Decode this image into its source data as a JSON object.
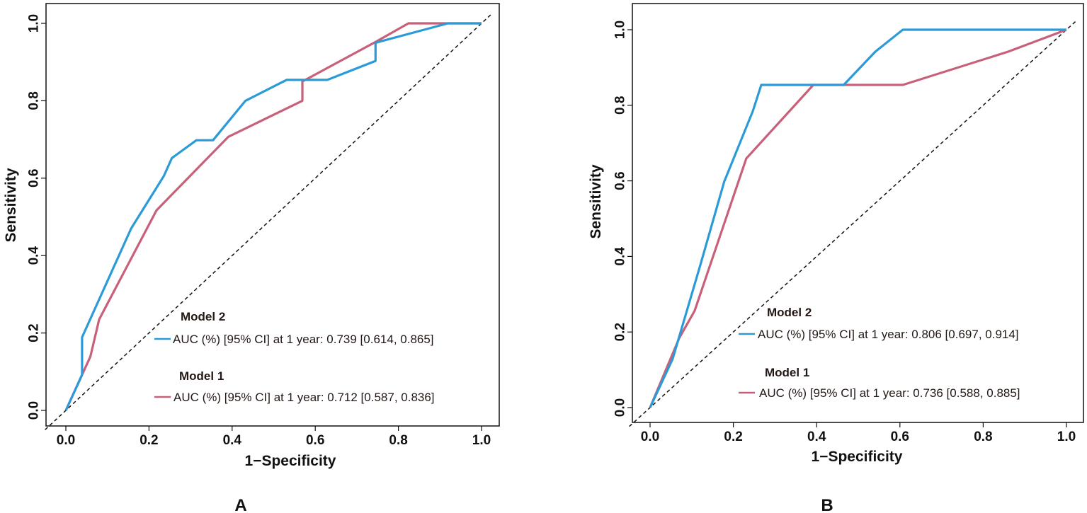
{
  "chart_data": [
    {
      "type": "line",
      "panel_label": "A",
      "xlabel": "1−Specificity",
      "ylabel": "Sensitivity",
      "xlim": [
        0,
        1
      ],
      "ylim": [
        0,
        1
      ],
      "xticks": [
        "0.0",
        "0.2",
        "0.4",
        "0.6",
        "0.8",
        "1.0"
      ],
      "yticks": [
        "0.0",
        "0.2",
        "0.4",
        "0.6",
        "0.8",
        "1.0"
      ],
      "reference_line": "diagonal dashed",
      "series": [
        {
          "name": "Model 2",
          "color": "#2b9bd8",
          "legend_text": "AUC (%) [95% CI] at 1 year: 0.739 [0.614, 0.865]",
          "x": [
            0,
            0.039,
            0.039,
            0.157,
            0.236,
            0.255,
            0.314,
            0.354,
            0.432,
            0.531,
            0.629,
            0.745,
            0.745,
            0.919,
            1
          ],
          "y": [
            0,
            0.092,
            0.189,
            0.47,
            0.606,
            0.652,
            0.698,
            0.698,
            0.8,
            0.854,
            0.854,
            0.903,
            0.95,
            1,
            1
          ]
        },
        {
          "name": "Model 1",
          "color": "#c8607a",
          "legend_text": "AUC (%) [95% CI] at 1 year: 0.712 [0.587, 0.836]",
          "x": [
            0,
            0.039,
            0.059,
            0.08,
            0.218,
            0.391,
            0.569,
            0.569,
            0.745,
            0.824,
            1
          ],
          "y": [
            0,
            0.092,
            0.139,
            0.235,
            0.517,
            0.707,
            0.8,
            0.85,
            0.952,
            1,
            1
          ]
        }
      ]
    },
    {
      "type": "line",
      "panel_label": "B",
      "xlabel": "1−Specificity",
      "ylabel": "Sensitivity",
      "xlim": [
        0,
        1
      ],
      "ylim": [
        0,
        1
      ],
      "xticks": [
        "0.0",
        "0.2",
        "0.4",
        "0.6",
        "0.8",
        "1.0"
      ],
      "yticks": [
        "0.0",
        "0.2",
        "0.4",
        "0.6",
        "0.8",
        "1.0"
      ],
      "reference_line": "diagonal dashed",
      "series": [
        {
          "name": "Model 2",
          "color": "#2b9bd8",
          "legend_text": "AUC (%) [95% CI] at 1 year: 0.806 [0.697, 0.914]",
          "x": [
            0,
            0.054,
            0.121,
            0.178,
            0.247,
            0.267,
            0.465,
            0.541,
            0.607,
            1
          ],
          "y": [
            0,
            0.128,
            0.378,
            0.598,
            0.785,
            0.854,
            0.854,
            0.942,
            1,
            1
          ]
        },
        {
          "name": "Model 1",
          "color": "#c8607a",
          "legend_text": "AUC (%) [95% CI] at 1 year: 0.736 [0.588, 0.885]",
          "x": [
            0,
            0.07,
            0.107,
            0.231,
            0.392,
            0.607,
            0.86,
            1
          ],
          "y": [
            0,
            0.184,
            0.256,
            0.659,
            0.854,
            0.854,
            0.942,
            1
          ]
        }
      ]
    }
  ]
}
